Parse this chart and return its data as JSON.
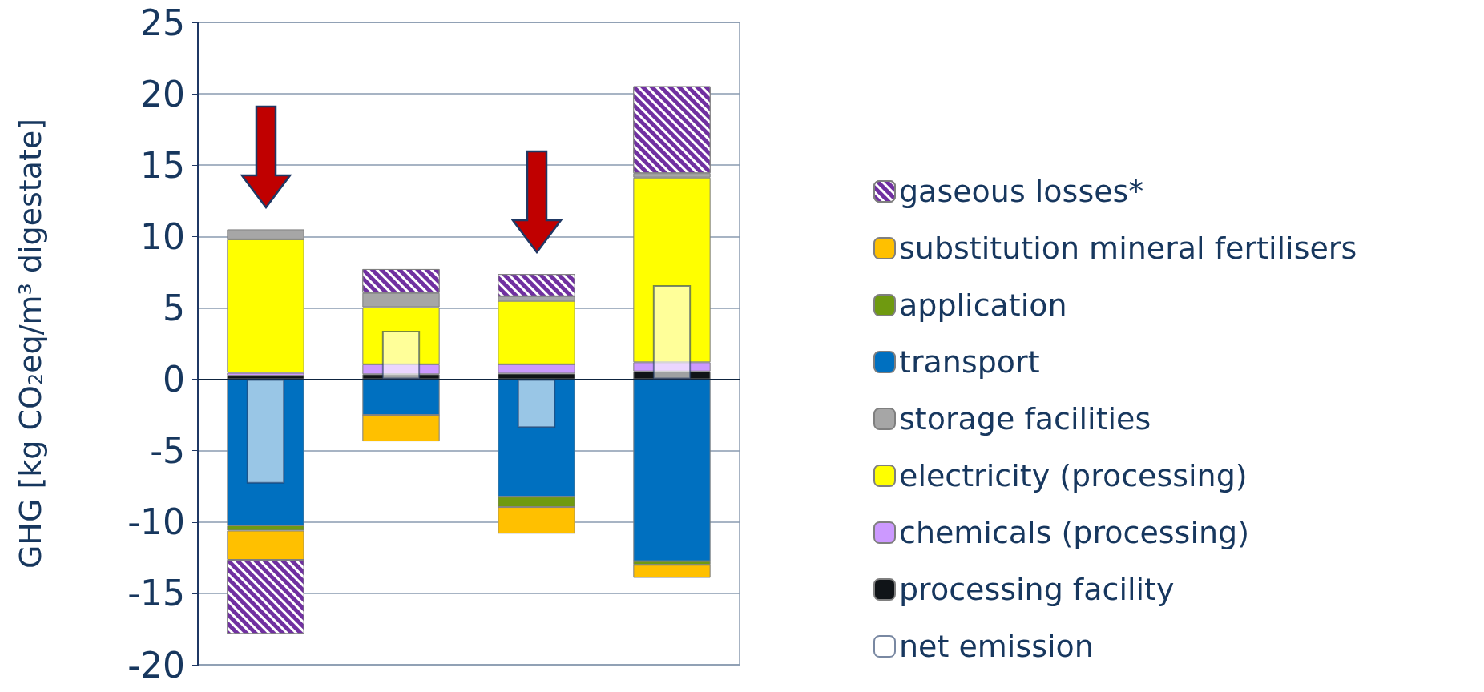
{
  "chart_data": [
    {
      "type": "bar",
      "stacked": true,
      "ylabel": "GHG [kg CO$_{2}$eq/m³ digestate]",
      "categories": [
        null,
        null,
        null,
        null
      ],
      "ylim": [
        -20,
        25
      ],
      "yticks": [
        -20,
        -15,
        -10,
        -5,
        0,
        5,
        10,
        15,
        20,
        25
      ],
      "grid": "y",
      "legend": "right",
      "series": [
        {
          "name": "processing facility",
          "color": "#101418",
          "values": [
            0.25,
            0.35,
            0.4,
            0.55
          ]
        },
        {
          "name": "chemicals (processing)",
          "color": "#cc99ff",
          "values": [
            0.2,
            0.7,
            0.65,
            0.64
          ]
        },
        {
          "name": "electricity (processing)",
          "color": "#ffff00",
          "values": [
            9.35,
            4.0,
            4.44,
            12.94
          ]
        },
        {
          "name": "storage facilities",
          "color": "#a6a6a6",
          "values": [
            0.7,
            1.0,
            0.33,
            0.31
          ]
        },
        {
          "name": "transport",
          "color": "#0070c0",
          "values": [
            -10.24,
            -2.5,
            -8.23,
            -12.74
          ]
        },
        {
          "name": "application",
          "color": "#6f9a10",
          "values": [
            -0.36,
            0,
            -0.72,
            -0.26
          ]
        },
        {
          "name": "substitution mineral fertilisers",
          "color": "#ffc000",
          "values": [
            -2.05,
            -1.85,
            -1.86,
            -0.91
          ]
        },
        {
          "name": "gaseous losses*",
          "color": "#7030a0",
          "values": [
            -5.18,
            1.67,
            1.55,
            6.09
          ]
        }
      ]
    },
    {
      "type": "bar",
      "categories": [
        null,
        null,
        null,
        null
      ],
      "ylim": [
        -20,
        25
      ],
      "yticks": [
        -20,
        -15,
        -10,
        -5,
        0,
        5,
        10,
        15,
        20,
        25
      ],
      "tick_labels": false,
      "legend": "right",
      "series": [
        {
          "name": "net emission",
          "color": "#ffffff",
          "values": [
            -7.3,
            3.4,
            -3.4,
            6.6
          ]
        }
      ]
    }
  ]
}
